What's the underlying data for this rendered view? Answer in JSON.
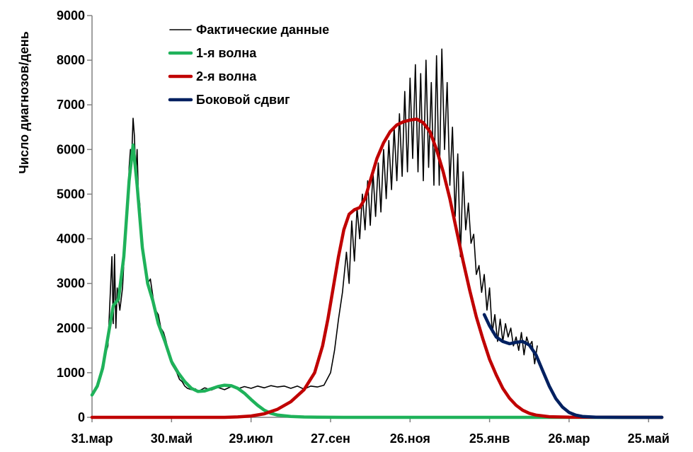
{
  "chart_data": {
    "type": "line",
    "ylabel": "Число диагнозов/день",
    "xlabel": "",
    "ylim": [
      0,
      9000
    ],
    "yticks": [
      0,
      1000,
      2000,
      3000,
      4000,
      5000,
      6000,
      7000,
      8000,
      9000
    ],
    "xlim": [
      0,
      430
    ],
    "xticks": [
      {
        "label": "31.мар",
        "x": 0
      },
      {
        "label": "30.май",
        "x": 60
      },
      {
        "label": "29.июл",
        "x": 120
      },
      {
        "label": "27.сен",
        "x": 180
      },
      {
        "label": "26.ноя",
        "x": 240
      },
      {
        "label": "25.янв",
        "x": 300
      },
      {
        "label": "26.мар",
        "x": 360
      },
      {
        "label": "25.май",
        "x": 420
      }
    ],
    "legend_position": "top-left",
    "grid": false,
    "series": [
      {
        "name": "Фактические данные",
        "color": "#000000",
        "points": [
          [
            0,
            500
          ],
          [
            4,
            700
          ],
          [
            8,
            1200
          ],
          [
            12,
            1600
          ],
          [
            15,
            3600
          ],
          [
            16,
            2100
          ],
          [
            17,
            3650
          ],
          [
            18,
            2000
          ],
          [
            19,
            2900
          ],
          [
            21,
            2400
          ],
          [
            23,
            2900
          ],
          [
            25,
            4000
          ],
          [
            27,
            4600
          ],
          [
            28,
            5600
          ],
          [
            29,
            6000
          ],
          [
            30,
            5900
          ],
          [
            31,
            6700
          ],
          [
            32,
            6300
          ],
          [
            33,
            5400
          ],
          [
            34,
            6000
          ],
          [
            35,
            5000
          ],
          [
            36,
            4800
          ],
          [
            38,
            3800
          ],
          [
            40,
            3500
          ],
          [
            42,
            3000
          ],
          [
            44,
            3100
          ],
          [
            46,
            2700
          ],
          [
            48,
            2400
          ],
          [
            50,
            2300
          ],
          [
            52,
            2000
          ],
          [
            54,
            1900
          ],
          [
            56,
            1700
          ],
          [
            58,
            1400
          ],
          [
            60,
            1200
          ],
          [
            62,
            1100
          ],
          [
            64,
            1000
          ],
          [
            66,
            850
          ],
          [
            68,
            800
          ],
          [
            70,
            700
          ],
          [
            72,
            650
          ],
          [
            75,
            620
          ],
          [
            78,
            640
          ],
          [
            80,
            580
          ],
          [
            85,
            660
          ],
          [
            90,
            610
          ],
          [
            95,
            670
          ],
          [
            100,
            620
          ],
          [
            105,
            690
          ],
          [
            110,
            640
          ],
          [
            115,
            690
          ],
          [
            120,
            650
          ],
          [
            125,
            700
          ],
          [
            130,
            660
          ],
          [
            135,
            710
          ],
          [
            140,
            680
          ],
          [
            145,
            700
          ],
          [
            150,
            650
          ],
          [
            155,
            700
          ],
          [
            160,
            630
          ],
          [
            165,
            700
          ],
          [
            170,
            680
          ],
          [
            175,
            720
          ],
          [
            180,
            1000
          ],
          [
            183,
            1500
          ],
          [
            186,
            2200
          ],
          [
            189,
            2800
          ],
          [
            192,
            3700
          ],
          [
            194,
            3000
          ],
          [
            196,
            4400
          ],
          [
            198,
            3500
          ],
          [
            200,
            4700
          ],
          [
            202,
            4000
          ],
          [
            204,
            5000
          ],
          [
            206,
            4200
          ],
          [
            208,
            5300
          ],
          [
            210,
            4300
          ],
          [
            212,
            5500
          ],
          [
            214,
            4500
          ],
          [
            216,
            5700
          ],
          [
            218,
            4600
          ],
          [
            220,
            6000
          ],
          [
            222,
            4900
          ],
          [
            224,
            6200
          ],
          [
            226,
            5100
          ],
          [
            228,
            6500
          ],
          [
            230,
            5300
          ],
          [
            232,
            6800
          ],
          [
            234,
            5400
          ],
          [
            236,
            7300
          ],
          [
            238,
            5500
          ],
          [
            240,
            7600
          ],
          [
            242,
            5800
          ],
          [
            244,
            7900
          ],
          [
            246,
            5500
          ],
          [
            248,
            7700
          ],
          [
            250,
            5300
          ],
          [
            252,
            8000
          ],
          [
            254,
            5600
          ],
          [
            256,
            7500
          ],
          [
            258,
            5200
          ],
          [
            260,
            8100
          ],
          [
            262,
            5200
          ],
          [
            264,
            8250
          ],
          [
            266,
            6000
          ],
          [
            268,
            7500
          ],
          [
            270,
            5200
          ],
          [
            272,
            6500
          ],
          [
            274,
            4500
          ],
          [
            276,
            5900
          ],
          [
            278,
            3600
          ],
          [
            280,
            5500
          ],
          [
            282,
            4200
          ],
          [
            284,
            4800
          ],
          [
            286,
            3900
          ],
          [
            288,
            4100
          ],
          [
            290,
            3200
          ],
          [
            292,
            3400
          ],
          [
            294,
            2800
          ],
          [
            296,
            3200
          ],
          [
            298,
            2400
          ],
          [
            300,
            2900
          ],
          [
            302,
            1900
          ],
          [
            304,
            2300
          ],
          [
            306,
            1700
          ],
          [
            308,
            2200
          ],
          [
            310,
            1700
          ],
          [
            312,
            2100
          ],
          [
            314,
            1800
          ],
          [
            316,
            2000
          ],
          [
            318,
            1600
          ],
          [
            320,
            1800
          ],
          [
            322,
            1500
          ],
          [
            324,
            1900
          ],
          [
            326,
            1400
          ],
          [
            328,
            1800
          ],
          [
            330,
            1600
          ],
          [
            332,
            1700
          ],
          [
            334,
            1200
          ],
          [
            336,
            1600
          ]
        ]
      },
      {
        "name": "1-я волна",
        "color": "#1fb25a",
        "points": [
          [
            0,
            500
          ],
          [
            4,
            700
          ],
          [
            8,
            1100
          ],
          [
            12,
            1800
          ],
          [
            16,
            2500
          ],
          [
            20,
            2650
          ],
          [
            24,
            3600
          ],
          [
            28,
            5300
          ],
          [
            31,
            6100
          ],
          [
            34,
            5200
          ],
          [
            38,
            3800
          ],
          [
            42,
            3000
          ],
          [
            46,
            2600
          ],
          [
            50,
            2100
          ],
          [
            55,
            1700
          ],
          [
            60,
            1250
          ],
          [
            65,
            1000
          ],
          [
            70,
            800
          ],
          [
            75,
            650
          ],
          [
            80,
            580
          ],
          [
            85,
            590
          ],
          [
            90,
            640
          ],
          [
            95,
            690
          ],
          [
            100,
            720
          ],
          [
            105,
            710
          ],
          [
            110,
            650
          ],
          [
            115,
            540
          ],
          [
            120,
            400
          ],
          [
            125,
            270
          ],
          [
            130,
            160
          ],
          [
            135,
            90
          ],
          [
            140,
            50
          ],
          [
            150,
            20
          ],
          [
            160,
            8
          ],
          [
            170,
            3
          ],
          [
            190,
            0
          ],
          [
            300,
            0
          ],
          [
            430,
            0
          ]
        ]
      },
      {
        "name": "2-я волна",
        "color": "#c00000",
        "points": [
          [
            0,
            0
          ],
          [
            100,
            0
          ],
          [
            110,
            10
          ],
          [
            120,
            30
          ],
          [
            130,
            80
          ],
          [
            140,
            180
          ],
          [
            150,
            350
          ],
          [
            160,
            620
          ],
          [
            168,
            1000
          ],
          [
            174,
            1600
          ],
          [
            178,
            2200
          ],
          [
            182,
            2900
          ],
          [
            186,
            3600
          ],
          [
            190,
            4200
          ],
          [
            194,
            4550
          ],
          [
            198,
            4650
          ],
          [
            202,
            4700
          ],
          [
            206,
            4900
          ],
          [
            210,
            5300
          ],
          [
            215,
            5800
          ],
          [
            220,
            6150
          ],
          [
            225,
            6400
          ],
          [
            230,
            6550
          ],
          [
            235,
            6620
          ],
          [
            240,
            6660
          ],
          [
            245,
            6680
          ],
          [
            250,
            6600
          ],
          [
            255,
            6400
          ],
          [
            260,
            6000
          ],
          [
            265,
            5500
          ],
          [
            270,
            4900
          ],
          [
            275,
            4200
          ],
          [
            280,
            3500
          ],
          [
            285,
            2850
          ],
          [
            290,
            2250
          ],
          [
            295,
            1750
          ],
          [
            300,
            1300
          ],
          [
            305,
            950
          ],
          [
            310,
            650
          ],
          [
            315,
            430
          ],
          [
            320,
            270
          ],
          [
            325,
            160
          ],
          [
            330,
            90
          ],
          [
            335,
            50
          ],
          [
            345,
            15
          ],
          [
            360,
            3
          ],
          [
            430,
            0
          ]
        ]
      },
      {
        "name": "Боковой сдвиг",
        "color": "#002060",
        "points": [
          [
            296,
            2300
          ],
          [
            300,
            2050
          ],
          [
            305,
            1800
          ],
          [
            310,
            1700
          ],
          [
            315,
            1650
          ],
          [
            320,
            1680
          ],
          [
            325,
            1700
          ],
          [
            330,
            1620
          ],
          [
            335,
            1400
          ],
          [
            340,
            1050
          ],
          [
            345,
            700
          ],
          [
            350,
            420
          ],
          [
            355,
            230
          ],
          [
            360,
            110
          ],
          [
            365,
            50
          ],
          [
            370,
            20
          ],
          [
            380,
            5
          ],
          [
            400,
            0
          ],
          [
            430,
            0
          ]
        ]
      }
    ]
  }
}
